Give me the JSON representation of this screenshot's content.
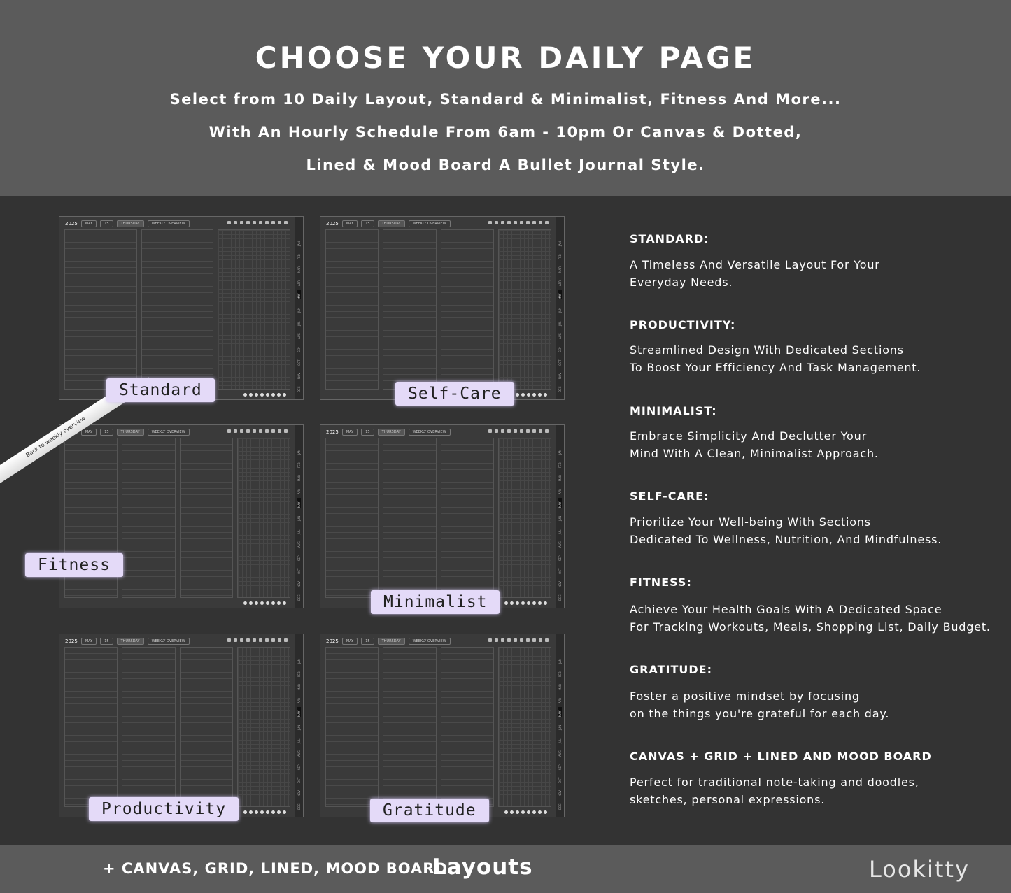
{
  "header": {
    "title": "CHOOSE YOUR DAILY PAGE",
    "lines": [
      "Select from 10 Daily Layout, Standard & Minimalist, Fitness And More...",
      "With An Hourly Schedule From 6am - 10pm Or Canvas & Dotted,",
      "Lined & Mood Board A Bullet Journal Style."
    ]
  },
  "thumbnail_common": {
    "year": "2025",
    "month": "MAY",
    "date": "15",
    "day": "THURSDAY",
    "weekly": "WEEKLY OVERVIEW",
    "months": [
      "JAN",
      "FEB",
      "MAR",
      "APR",
      "MAY",
      "JUN",
      "JUL",
      "AUG",
      "SEP",
      "OCT",
      "NOV",
      "DEC"
    ],
    "active_month": "MAY"
  },
  "thumbnails": [
    {
      "label": "Standard",
      "cols": 3
    },
    {
      "label": "Self-Care",
      "cols": 4
    },
    {
      "label": "Fitness",
      "cols": 4
    },
    {
      "label": "Minimalist",
      "cols": 4
    },
    {
      "label": "Productivity",
      "cols": 4
    },
    {
      "label": "Gratitude",
      "cols": 4
    }
  ],
  "pencil_text": "Back to weekly overview",
  "sections": [
    {
      "title": "STANDARD:",
      "desc": "A Timeless And Versatile Layout For Your\nEveryday Needs."
    },
    {
      "title": "PRODUCTIVITY:",
      "desc": "Streamlined Design With Dedicated Sections\nTo Boost Your Efficiency And Task Management."
    },
    {
      "title": "MINIMALIST:",
      "desc": "Embrace Simplicity And Declutter Your\nMind With A Clean, Minimalist Approach."
    },
    {
      "title": "SELF-CARE:",
      "desc": "Prioritize Your Well-being With Sections\nDedicated To Wellness, Nutrition, And Mindfulness."
    },
    {
      "title": "FITNESS:",
      "desc": "Achieve Your Health Goals With A Dedicated Space\nFor Tracking Workouts, Meals, Shopping List, Daily Budget."
    },
    {
      "title": "GRATITUDE:",
      "desc": "Foster a positive mindset by focusing\non the things you're grateful for each day."
    },
    {
      "title": "CANVAS + GRID + LINED AND MOOD BOARD",
      "desc": "Perfect for traditional note-taking and doodles,\nsketches, personal expressions."
    }
  ],
  "footer": {
    "plus": "+ CANVAS, GRID, LINED, MOOD BOARD",
    "layouts": "Layouts",
    "brand": "Lookitty"
  }
}
